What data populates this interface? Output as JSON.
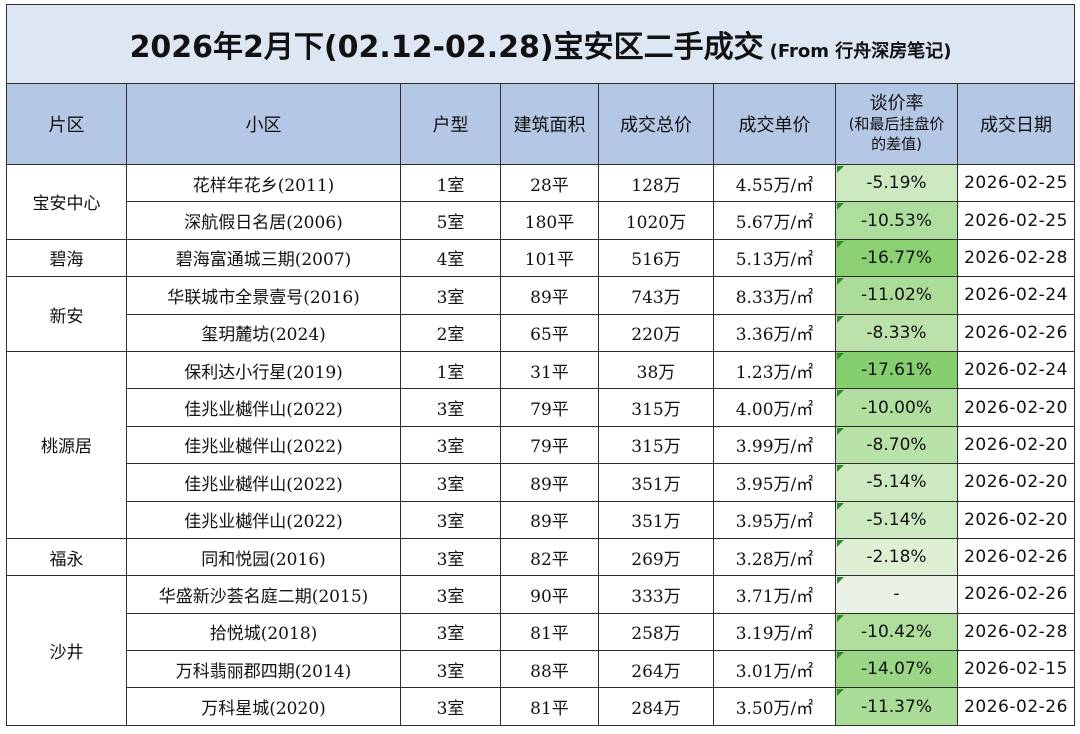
{
  "title": {
    "main": "2026年2月下(02.12-02.28)宝安区二手成交",
    "sub": "(From 行舟深房笔记)"
  },
  "headers": {
    "area": "片区",
    "community": "小区",
    "layout": "户型",
    "size": "建筑面积",
    "total": "成交总价",
    "unit": "成交单价",
    "rate_main": "谈价率",
    "rate_note1": "(和最后挂盘价",
    "rate_note2": "的差值)",
    "date": "成交日期"
  },
  "groups": [
    {
      "area": "宝安中心",
      "rows": [
        {
          "community": "花样年花乡(2011)",
          "layout": "1室",
          "size": "28平",
          "total": "128万",
          "unit": "4.55万/㎡",
          "rate": "-5.19%",
          "rate_value": -5.19,
          "date": "2026-02-25"
        },
        {
          "community": "深航假日名居(2006)",
          "layout": "5室",
          "size": "180平",
          "total": "1020万",
          "unit": "5.67万/㎡",
          "rate": "-10.53%",
          "rate_value": -10.53,
          "date": "2026-02-25"
        }
      ]
    },
    {
      "area": "碧海",
      "rows": [
        {
          "community": "碧海富通城三期(2007)",
          "layout": "4室",
          "size": "101平",
          "total": "516万",
          "unit": "5.13万/㎡",
          "rate": "-16.77%",
          "rate_value": -16.77,
          "date": "2026-02-28"
        }
      ]
    },
    {
      "area": "新安",
      "rows": [
        {
          "community": "华联城市全景壹号(2016)",
          "layout": "3室",
          "size": "89平",
          "total": "743万",
          "unit": "8.33万/㎡",
          "rate": "-11.02%",
          "rate_value": -11.02,
          "date": "2026-02-24"
        },
        {
          "community": "玺玥麓坊(2024)",
          "layout": "2室",
          "size": "65平",
          "total": "220万",
          "unit": "3.36万/㎡",
          "rate": "-8.33%",
          "rate_value": -8.33,
          "date": "2026-02-26"
        }
      ]
    },
    {
      "area": "桃源居",
      "rows": [
        {
          "community": "保利达小行星(2019)",
          "layout": "1室",
          "size": "31平",
          "total": "38万",
          "unit": "1.23万/㎡",
          "rate": "-17.61%",
          "rate_value": -17.61,
          "date": "2026-02-24"
        },
        {
          "community": "佳兆业樾伴山(2022)",
          "layout": "3室",
          "size": "79平",
          "total": "315万",
          "unit": "4.00万/㎡",
          "rate": "-10.00%",
          "rate_value": -10.0,
          "date": "2026-02-20"
        },
        {
          "community": "佳兆业樾伴山(2022)",
          "layout": "3室",
          "size": "79平",
          "total": "315万",
          "unit": "3.99万/㎡",
          "rate": "-8.70%",
          "rate_value": -8.7,
          "date": "2026-02-20"
        },
        {
          "community": "佳兆业樾伴山(2022)",
          "layout": "3室",
          "size": "89平",
          "total": "351万",
          "unit": "3.95万/㎡",
          "rate": "-5.14%",
          "rate_value": -5.14,
          "date": "2026-02-20"
        },
        {
          "community": "佳兆业樾伴山(2022)",
          "layout": "3室",
          "size": "89平",
          "total": "351万",
          "unit": "3.95万/㎡",
          "rate": "-5.14%",
          "rate_value": -5.14,
          "date": "2026-02-20"
        }
      ]
    },
    {
      "area": "福永",
      "rows": [
        {
          "community": "同和悦园(2016)",
          "layout": "3室",
          "size": "82平",
          "total": "269万",
          "unit": "3.28万/㎡",
          "rate": "-2.18%",
          "rate_value": -2.18,
          "date": "2026-02-26"
        }
      ]
    },
    {
      "area": "沙井",
      "rows": [
        {
          "community": "华盛新沙荟名庭二期(2015)",
          "layout": "3室",
          "size": "90平",
          "total": "333万",
          "unit": "3.71万/㎡",
          "rate": "-",
          "rate_value": null,
          "date": "2026-02-26"
        },
        {
          "community": "拾悦城(2018)",
          "layout": "3室",
          "size": "81平",
          "total": "258万",
          "unit": "3.19万/㎡",
          "rate": "-10.42%",
          "rate_value": -10.42,
          "date": "2026-02-28"
        },
        {
          "community": "万科翡丽郡四期(2014)",
          "layout": "3室",
          "size": "88平",
          "total": "264万",
          "unit": "3.01万/㎡",
          "rate": "-14.07%",
          "rate_value": -14.07,
          "date": "2026-02-15"
        },
        {
          "community": "万科星城(2020)",
          "layout": "3室",
          "size": "81平",
          "total": "284万",
          "unit": "3.50万/㎡",
          "rate": "-11.37%",
          "rate_value": -11.37,
          "date": "2026-02-26"
        }
      ]
    }
  ],
  "colors": {
    "title_bg": "#dde7f3",
    "header_bg": "#b4c7e4",
    "rate_light": "#eaf4e2",
    "rate_dark": "#86cf6e",
    "border": "#2e2e2e"
  }
}
